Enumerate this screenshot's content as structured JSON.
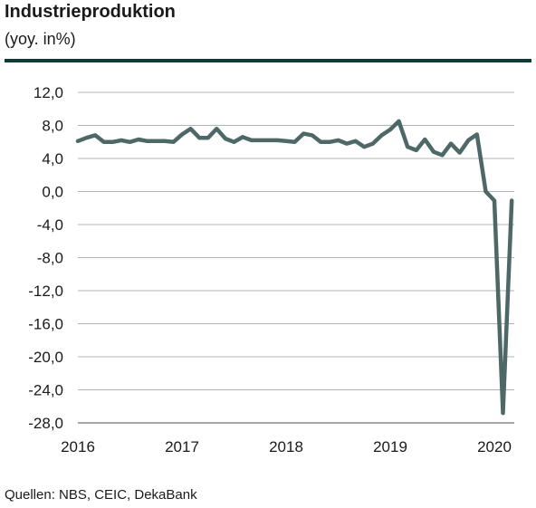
{
  "header": {
    "title": "Industrieproduktion",
    "subtitle": "(yoy. in%)"
  },
  "footer": {
    "source": "Quellen: NBS, CEIC, DekaBank"
  },
  "colors": {
    "rule": "#0e3a3a",
    "line": "#4e6868",
    "grid": "#b3b3b3",
    "axis": "#8c8c8c"
  },
  "chart_data": {
    "type": "line",
    "title": "Industrieproduktion",
    "subtitle": "(yoy. in%)",
    "xlabel": "",
    "ylabel": "",
    "ylim": [
      -28,
      12
    ],
    "xlim": [
      2016,
      2020.25
    ],
    "grid": true,
    "legend": "none",
    "y_ticks": [
      12,
      8,
      4,
      0,
      -4,
      -8,
      -12,
      -16,
      -20,
      -24,
      -28
    ],
    "y_tick_labels": [
      "12,0",
      "8,0",
      "4,0",
      "0,0",
      "-4,0",
      "-8,0",
      "-12,0",
      "-16,0",
      "-20,0",
      "-24,0",
      "-28,0"
    ],
    "x_ticks": [
      2016,
      2017,
      2018,
      2019,
      2020
    ],
    "x_tick_labels": [
      "2016",
      "2017",
      "2018",
      "2019",
      "2020"
    ],
    "series": [
      {
        "x": [
          2016.0,
          2016.083,
          2016.167,
          2016.25,
          2016.333,
          2016.417,
          2016.5,
          2016.583,
          2016.667,
          2016.75,
          2016.833,
          2016.917,
          2017.0,
          2017.083,
          2017.167,
          2017.25,
          2017.333,
          2017.417,
          2017.5,
          2017.583,
          2017.667,
          2017.75,
          2017.833,
          2017.917,
          2018.0,
          2018.083,
          2018.167,
          2018.25,
          2018.333,
          2018.417,
          2018.5,
          2018.583,
          2018.667,
          2018.75,
          2018.833,
          2018.917,
          2019.0,
          2019.083,
          2019.167,
          2019.25,
          2019.333,
          2019.417,
          2019.5,
          2019.583,
          2019.667,
          2019.75,
          2019.833,
          2019.917,
          2020.0,
          2020.083,
          2020.167
        ],
        "values": [
          6.1,
          6.5,
          6.8,
          6.0,
          6.0,
          6.2,
          6.0,
          6.3,
          6.1,
          6.1,
          6.1,
          6.0,
          6.9,
          7.6,
          6.5,
          6.5,
          7.6,
          6.4,
          6.0,
          6.6,
          6.2,
          6.2,
          6.2,
          6.2,
          6.1,
          6.0,
          7.0,
          6.8,
          6.0,
          6.0,
          6.2,
          5.8,
          6.1,
          5.4,
          5.8,
          6.8,
          7.5,
          8.5,
          5.4,
          5.0,
          6.3,
          4.8,
          4.4,
          5.8,
          4.7,
          6.2,
          6.9,
          0.0,
          -1.1,
          -26.8,
          -1.1
        ]
      }
    ]
  }
}
